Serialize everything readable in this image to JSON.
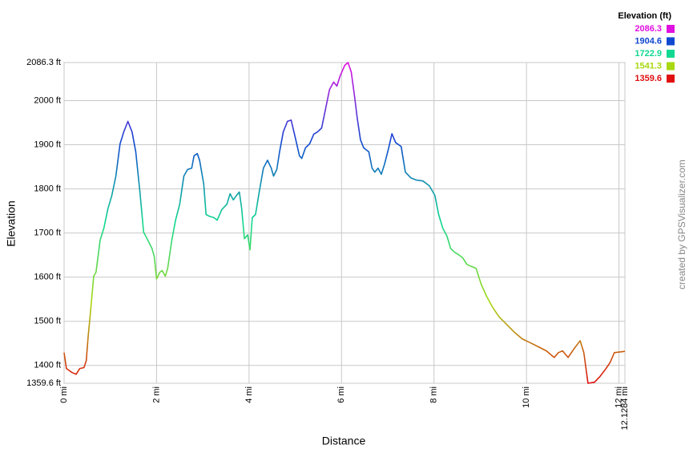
{
  "chart_data": {
    "type": "line",
    "x_label": "Distance",
    "y_label": "Elevation",
    "legend_title": "Elevation (ft)",
    "credit": "created by GPSVisualizer.com",
    "color_stops": [
      {
        "value": 2086.3,
        "color": "#e010e0"
      },
      {
        "value": 1904.6,
        "color": "#1048d0"
      },
      {
        "value": 1722.9,
        "color": "#10d890"
      },
      {
        "value": 1541.3,
        "color": "#a8d810"
      },
      {
        "value": 1359.6,
        "color": "#e01010"
      }
    ],
    "x": [
      0,
      0.05,
      0.17,
      0.26,
      0.34,
      0.43,
      0.48,
      0.52,
      0.57,
      0.64,
      0.69,
      0.78,
      0.86,
      0.95,
      1.03,
      1.12,
      1.21,
      1.29,
      1.38,
      1.47,
      1.55,
      1.64,
      1.72,
      1.81,
      1.9,
      1.95,
      2.0,
      2.07,
      2.12,
      2.19,
      2.24,
      2.33,
      2.41,
      2.5,
      2.59,
      2.67,
      2.76,
      2.81,
      2.88,
      2.93,
      3.02,
      3.07,
      3.14,
      3.24,
      3.31,
      3.41,
      3.52,
      3.59,
      3.66,
      3.72,
      3.79,
      3.84,
      3.9,
      3.97,
      4.02,
      4.07,
      4.14,
      4.22,
      4.31,
      4.4,
      4.48,
      4.53,
      4.6,
      4.66,
      4.74,
      4.83,
      4.91,
      5.0,
      5.09,
      5.14,
      5.22,
      5.31,
      5.4,
      5.48,
      5.57,
      5.66,
      5.74,
      5.83,
      5.9,
      5.97,
      6.07,
      6.14,
      6.21,
      6.28,
      6.34,
      6.41,
      6.48,
      6.59,
      6.66,
      6.72,
      6.79,
      6.86,
      6.93,
      7.02,
      7.09,
      7.17,
      7.29,
      7.38,
      7.5,
      7.62,
      7.76,
      7.9,
      8.02,
      8.1,
      8.19,
      8.28,
      8.36,
      8.45,
      8.53,
      8.62,
      8.71,
      8.79,
      8.91,
      9.02,
      9.14,
      9.26,
      9.4,
      9.57,
      9.74,
      9.91,
      10.09,
      10.26,
      10.43,
      10.6,
      10.69,
      10.78,
      10.9,
      11.03,
      11.16,
      11.24,
      11.33,
      11.47,
      11.59,
      11.72,
      11.81,
      11.9,
      12.1284
    ],
    "values": [
      1429,
      1393,
      1384,
      1380,
      1393,
      1395,
      1411,
      1465,
      1520,
      1602,
      1611,
      1684,
      1711,
      1756,
      1784,
      1829,
      1902,
      1929,
      1953,
      1929,
      1884,
      1793,
      1702,
      1684,
      1665,
      1647,
      1596,
      1611,
      1615,
      1602,
      1620,
      1684,
      1729,
      1765,
      1829,
      1844,
      1847,
      1875,
      1880,
      1865,
      1811,
      1742,
      1738,
      1735,
      1729,
      1753,
      1765,
      1789,
      1775,
      1784,
      1793,
      1756,
      1687,
      1696,
      1662,
      1735,
      1742,
      1793,
      1847,
      1865,
      1847,
      1829,
      1844,
      1884,
      1929,
      1953,
      1956,
      1916,
      1875,
      1869,
      1893,
      1902,
      1924,
      1929,
      1938,
      1984,
      2025,
      2042,
      2033,
      2056,
      2080,
      2086.3,
      2065,
      2011,
      1960,
      1911,
      1893,
      1884,
      1847,
      1838,
      1847,
      1833,
      1856,
      1893,
      1925,
      1905,
      1896,
      1838,
      1825,
      1820,
      1818,
      1807,
      1785,
      1742,
      1711,
      1693,
      1665,
      1656,
      1651,
      1644,
      1629,
      1625,
      1620,
      1584,
      1556,
      1533,
      1511,
      1493,
      1475,
      1460,
      1451,
      1442,
      1433,
      1418,
      1429,
      1433,
      1418,
      1438,
      1456,
      1429,
      1359.6,
      1362,
      1375,
      1393,
      1407,
      1429,
      1432
    ],
    "xlim": [
      0,
      12.1284
    ],
    "ylim": [
      1359.6,
      2086.3
    ],
    "xticks": [
      {
        "value": 0,
        "label": "0 mi"
      },
      {
        "value": 2,
        "label": "2 mi"
      },
      {
        "value": 4,
        "label": "4 mi"
      },
      {
        "value": 6,
        "label": "6 mi"
      },
      {
        "value": 8,
        "label": "8 mi"
      },
      {
        "value": 10,
        "label": "10 mi"
      },
      {
        "value": 12,
        "label": "12 mi"
      },
      {
        "value": 12.1284,
        "label": "12.1284 mi"
      }
    ],
    "yticks": [
      {
        "value": 1359.6,
        "label": "1359.6 ft"
      },
      {
        "value": 1400,
        "label": "1400 ft"
      },
      {
        "value": 1500,
        "label": "1500 ft"
      },
      {
        "value": 1600,
        "label": "1600 ft"
      },
      {
        "value": 1700,
        "label": "1700 ft"
      },
      {
        "value": 1800,
        "label": "1800 ft"
      },
      {
        "value": 1900,
        "label": "1900 ft"
      },
      {
        "value": 2000,
        "label": "2000 ft"
      },
      {
        "value": 2086.3,
        "label": "2086.3 ft"
      }
    ],
    "grid": true
  }
}
